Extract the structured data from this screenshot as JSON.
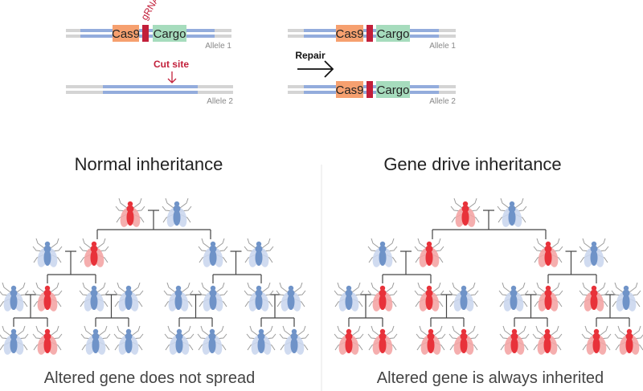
{
  "top": {
    "before": {
      "allele1_label": "Allele 1",
      "allele2_label": "Allele 2",
      "cas9": "Cas9",
      "cargo": "Cargo",
      "grna": "gRNA",
      "cut_site": "Cut site"
    },
    "repair_label": "Repair",
    "after": {
      "allele1_label": "Allele 1",
      "allele2_label": "Allele 2",
      "cas9": "Cas9",
      "cargo": "Cargo"
    }
  },
  "colors": {
    "cas9": "#f6a06f",
    "grna": "#c21f3a",
    "cargo": "#a6dcbd",
    "dna_gray": "#d4d4d4",
    "dna_blue": "#93acdc",
    "altered_fly": "#e8323a",
    "wild_fly": "#6f93c8",
    "red_text": "#c21f3a"
  },
  "panels": [
    {
      "title": "Normal inheritance",
      "caption": "Altered gene does not spread",
      "generations": [
        [
          "altered",
          "wild"
        ],
        [
          "wild",
          "altered",
          "wild",
          "wild"
        ],
        [
          "wild",
          "altered",
          "wild",
          "wild",
          "wild",
          "wild",
          "wild",
          "wild"
        ],
        [
          "wild",
          "altered",
          "wild",
          "wild",
          "wild",
          "wild",
          "wild",
          "wild"
        ]
      ]
    },
    {
      "title": "Gene drive inheritance",
      "caption": "Altered gene is always inherited",
      "generations": [
        [
          "altered",
          "wild"
        ],
        [
          "wild",
          "altered",
          "altered",
          "wild"
        ],
        [
          "wild",
          "altered",
          "altered",
          "wild",
          "wild",
          "altered",
          "altered",
          "wild"
        ],
        [
          "altered",
          "altered",
          "altered",
          "altered",
          "altered",
          "altered",
          "altered",
          "altered"
        ]
      ]
    }
  ]
}
